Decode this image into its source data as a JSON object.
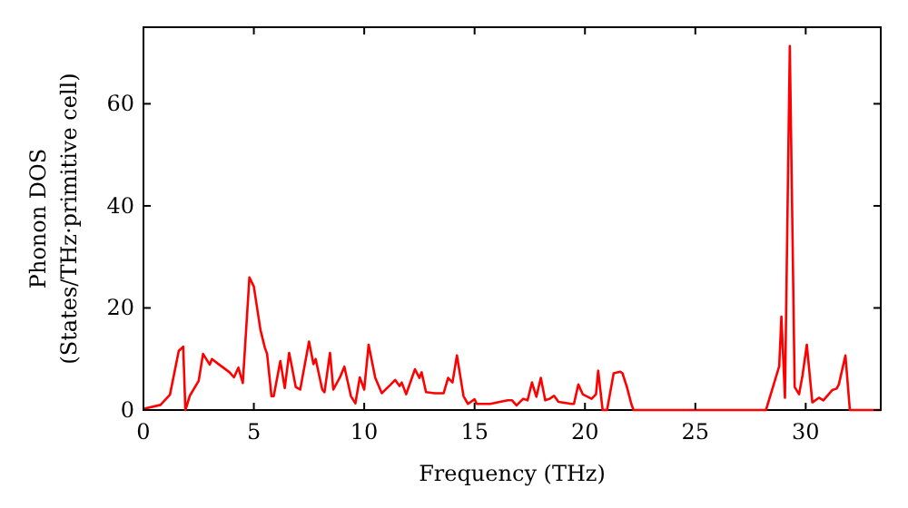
{
  "chart_data": {
    "type": "line",
    "xlabel": "Frequency (THz)",
    "ylabel": "Phonon DOS\n(States/THz·primitive cell)",
    "xlim": [
      0,
      33.4
    ],
    "ylim": [
      0,
      75
    ],
    "xticks": [
      0,
      5,
      10,
      15,
      20,
      25,
      30
    ],
    "yticks": [
      0,
      20,
      40,
      60
    ],
    "grid": false,
    "marker": "none",
    "line_style": "solid",
    "series": [
      {
        "color": "#ff0000",
        "x": [
          0,
          0.08,
          0.77,
          1.2,
          1.6,
          1.8,
          1.9,
          2.1,
          2.5,
          2.7,
          3.0,
          3.1,
          3.4,
          3.9,
          4.1,
          4.3,
          4.5,
          4.8,
          5.0,
          5.3,
          5.5,
          5.6,
          5.8,
          5.9,
          6.2,
          6.4,
          6.6,
          6.7,
          6.9,
          7.1,
          7.5,
          7.7,
          7.8,
          8.1,
          8.2,
          8.45,
          8.6,
          8.9,
          9.1,
          9.4,
          9.6,
          9.8,
          10.0,
          10.2,
          10.5,
          10.8,
          11.2,
          11.4,
          11.6,
          11.7,
          11.9,
          12.3,
          12.5,
          12.6,
          12.8,
          13.2,
          13.6,
          13.8,
          14.0,
          14.2,
          14.5,
          14.7,
          15.0,
          15.1,
          15.7,
          16.5,
          16.7,
          16.9,
          17.2,
          17.4,
          17.6,
          17.8,
          18.0,
          18.2,
          18.4,
          18.6,
          18.8,
          19.4,
          19.5,
          19.7,
          19.9,
          20.3,
          20.5,
          20.6,
          20.8,
          21.0,
          21.3,
          21.6,
          21.7,
          21.9,
          22.1,
          22.2,
          28.2,
          28.6,
          28.8,
          28.9,
          29.06,
          29.28,
          29.5,
          29.7,
          29.86,
          30.05,
          30.3,
          30.6,
          30.8,
          31.2,
          31.4,
          31.5,
          31.8,
          32.0,
          33.4
        ],
        "values": [
          0,
          0.3,
          1,
          3,
          11.6,
          12.4,
          0,
          2.8,
          5.7,
          11,
          8.9,
          10,
          9,
          7.4,
          6.4,
          8.3,
          5.3,
          26,
          24.2,
          15.7,
          12.2,
          11,
          2.7,
          2.7,
          9.6,
          4.3,
          11.2,
          9,
          4.5,
          4,
          13.4,
          9,
          10,
          4,
          3.5,
          11.2,
          4,
          6.4,
          8.5,
          2.7,
          1.3,
          6.4,
          4,
          12.8,
          6.3,
          3.3,
          5,
          5.9,
          4.7,
          5.4,
          3.1,
          8,
          6.3,
          7.4,
          3.5,
          3.3,
          3.3,
          6.3,
          5.4,
          10.7,
          2.7,
          1.2,
          2.1,
          1.2,
          1.2,
          1.9,
          1.9,
          0.9,
          2.2,
          1.9,
          5.4,
          2.6,
          6.3,
          1.9,
          2.2,
          2.8,
          1.6,
          1.2,
          1.2,
          5,
          3.1,
          2.2,
          3.1,
          7.7,
          0,
          0,
          7.2,
          7.5,
          7.2,
          4.5,
          1.2,
          0,
          0,
          5.7,
          8.6,
          18.3,
          2.4,
          71.3,
          4.5,
          3.1,
          6.9,
          12.8,
          1.5,
          2.4,
          1.9,
          3.9,
          4.2,
          5,
          10.7,
          0,
          0
        ]
      }
    ]
  }
}
